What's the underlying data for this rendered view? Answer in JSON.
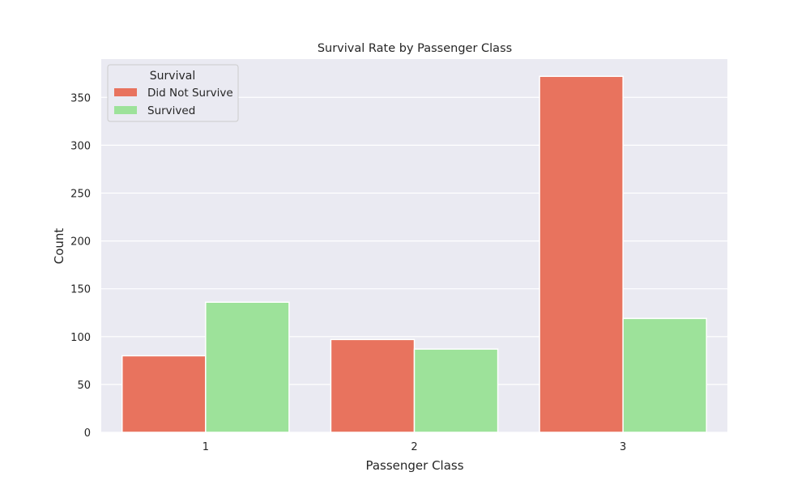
{
  "chart_data": {
    "type": "bar",
    "title": "Survival Rate by Passenger Class",
    "xlabel": "Passenger Class",
    "ylabel": "Count",
    "categories": [
      "1",
      "2",
      "3"
    ],
    "series": [
      {
        "name": "Did Not Survive",
        "values": [
          80,
          97,
          372
        ],
        "color": "#e8735e"
      },
      {
        "name": "Survived",
        "values": [
          136,
          87,
          119
        ],
        "color": "#9de29a"
      }
    ],
    "ylim": [
      0,
      390
    ],
    "yticks": [
      0,
      50,
      100,
      150,
      200,
      250,
      300,
      350
    ],
    "grid": true,
    "legend": {
      "title": "Survival",
      "position": "top-left"
    },
    "colors": {
      "plot_background": "#eaeaf2",
      "grid": "#ffffff"
    }
  }
}
